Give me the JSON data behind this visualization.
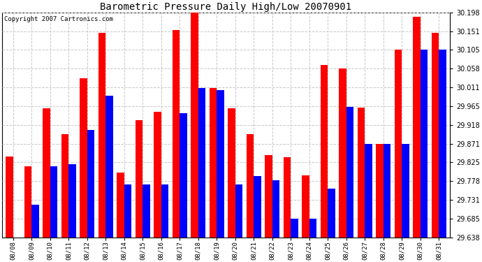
{
  "title": "Barometric Pressure Daily High/Low 20070901",
  "copyright": "Copyright 2007 Cartronics.com",
  "dates": [
    "08/08",
    "08/09",
    "08/10",
    "08/11",
    "08/12",
    "08/13",
    "08/14",
    "08/15",
    "08/16",
    "08/17",
    "08/18",
    "08/19",
    "08/20",
    "08/21",
    "08/22",
    "08/23",
    "08/24",
    "08/25",
    "08/26",
    "08/27",
    "08/28",
    "08/29",
    "08/30",
    "08/31"
  ],
  "highs": [
    29.84,
    29.815,
    29.96,
    29.895,
    30.035,
    30.148,
    29.8,
    29.93,
    29.95,
    30.155,
    30.198,
    30.01,
    29.96,
    29.895,
    29.843,
    29.838,
    29.793,
    30.068,
    30.058,
    29.962,
    29.87,
    30.105,
    30.188,
    30.148
  ],
  "lows": [
    29.638,
    29.72,
    29.815,
    29.82,
    29.905,
    29.99,
    29.77,
    29.77,
    29.77,
    29.948,
    30.01,
    30.005,
    29.77,
    29.79,
    29.78,
    29.685,
    29.685,
    29.76,
    29.963,
    29.87,
    29.87,
    29.87,
    30.105,
    30.105
  ],
  "bar_width": 0.4,
  "high_color": "#ff0000",
  "low_color": "#0000ff",
  "bg_color": "#ffffff",
  "grid_color": "#c8c8c8",
  "ymin": 29.638,
  "ymax": 30.198,
  "yticks": [
    29.638,
    29.685,
    29.731,
    29.778,
    29.825,
    29.871,
    29.918,
    29.965,
    30.011,
    30.058,
    30.105,
    30.151,
    30.198
  ]
}
